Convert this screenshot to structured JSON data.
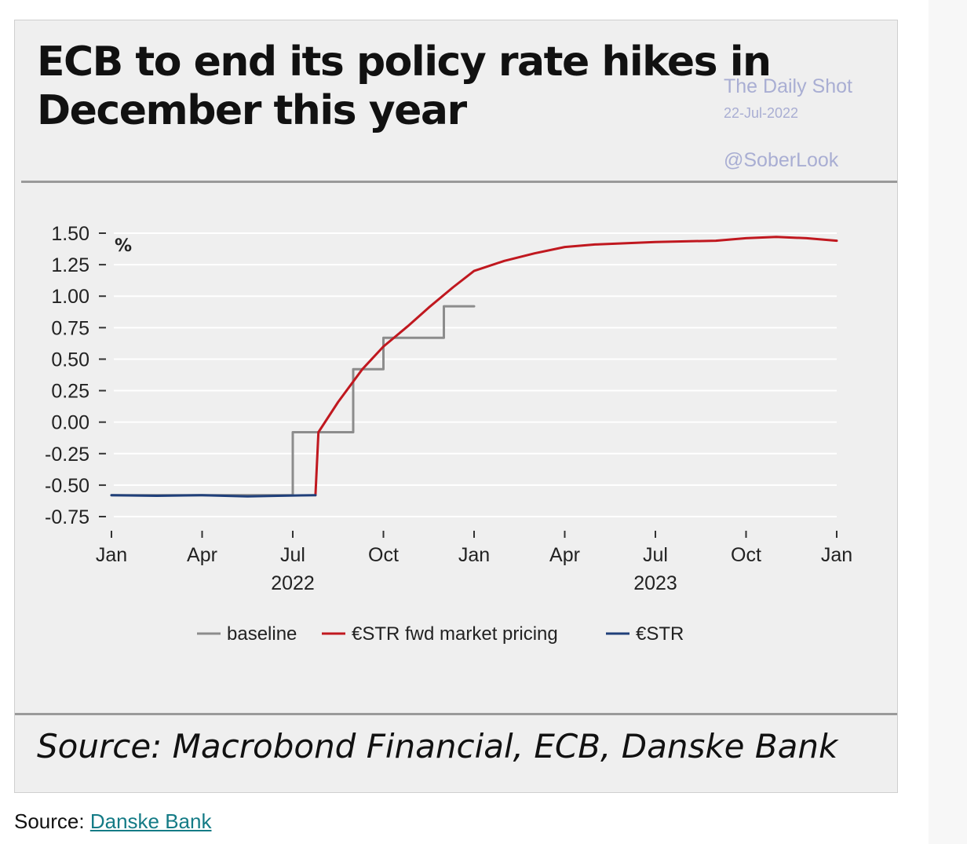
{
  "title": "ECB to end its policy rate hikes in December this year",
  "watermark": {
    "name": "The Daily Shot",
    "date": "22-Jul-2022",
    "handle": "@SoberLook"
  },
  "source_text": "Source: Macrobond Financial, ECB, Danske Bank",
  "caption": {
    "prefix": "Source: ",
    "link_text": "Danske Bank"
  },
  "colors": {
    "baseline": "#8c8c8c",
    "fwd": "#c0181f",
    "estr": "#1f3f7a",
    "grid": "#ffffff",
    "background": "#efefef"
  },
  "chart_data": {
    "type": "line",
    "title": "ECB to end its policy rate hikes in December this year",
    "ylabel": "%",
    "xlabel": "",
    "ylim": [
      -0.75,
      1.5
    ],
    "yticks": [
      1.5,
      1.25,
      1.0,
      0.75,
      0.5,
      0.25,
      0.0,
      -0.25,
      -0.5,
      -0.75
    ],
    "ytick_labels": [
      "1.50",
      "1.25",
      "1.00",
      "0.75",
      "0.50",
      "0.25",
      "0.00",
      "-0.25",
      "-0.50",
      "-0.75"
    ],
    "x_axis": "months since Jan 2022",
    "xlim": [
      0,
      24
    ],
    "xticks": [
      {
        "pos": 0,
        "label": "Jan"
      },
      {
        "pos": 3,
        "label": "Apr"
      },
      {
        "pos": 6,
        "label": "Jul"
      },
      {
        "pos": 9,
        "label": "Oct"
      },
      {
        "pos": 12,
        "label": "Jan"
      },
      {
        "pos": 15,
        "label": "Apr"
      },
      {
        "pos": 18,
        "label": "Jul"
      },
      {
        "pos": 21,
        "label": "Oct"
      },
      {
        "pos": 24,
        "label": "Jan"
      }
    ],
    "year_labels": [
      {
        "pos": 6,
        "label": "2022"
      },
      {
        "pos": 18,
        "label": "2023"
      }
    ],
    "grid": true,
    "legend_position": "bottom",
    "series": [
      {
        "name": "baseline",
        "color": "#8c8c8c",
        "step": true,
        "points": [
          [
            0,
            -0.58
          ],
          [
            6.0,
            -0.58
          ],
          [
            6.0,
            -0.08
          ],
          [
            8.0,
            -0.08
          ],
          [
            8.0,
            0.42
          ],
          [
            9.0,
            0.42
          ],
          [
            9.0,
            0.67
          ],
          [
            11.0,
            0.67
          ],
          [
            11.0,
            0.92
          ],
          [
            12.0,
            0.92
          ]
        ]
      },
      {
        "name": "€STR fwd market pricing",
        "color": "#c0181f",
        "step": false,
        "points": [
          [
            6.75,
            -0.58
          ],
          [
            6.85,
            -0.08
          ],
          [
            7.5,
            0.16
          ],
          [
            8.3,
            0.42
          ],
          [
            9.0,
            0.6
          ],
          [
            9.8,
            0.76
          ],
          [
            10.5,
            0.91
          ],
          [
            11.3,
            1.07
          ],
          [
            12.0,
            1.2
          ],
          [
            13.0,
            1.28
          ],
          [
            14.0,
            1.34
          ],
          [
            15.0,
            1.39
          ],
          [
            16.0,
            1.41
          ],
          [
            18.0,
            1.43
          ],
          [
            20.0,
            1.44
          ],
          [
            21.0,
            1.46
          ],
          [
            22.0,
            1.47
          ],
          [
            23.0,
            1.46
          ],
          [
            24.0,
            1.44
          ]
        ]
      },
      {
        "name": "€STR",
        "color": "#1f3f7a",
        "step": false,
        "points": [
          [
            0,
            -0.58
          ],
          [
            1.5,
            -0.585
          ],
          [
            3.0,
            -0.58
          ],
          [
            4.5,
            -0.59
          ],
          [
            5.5,
            -0.585
          ],
          [
            6.75,
            -0.58
          ]
        ]
      }
    ]
  }
}
